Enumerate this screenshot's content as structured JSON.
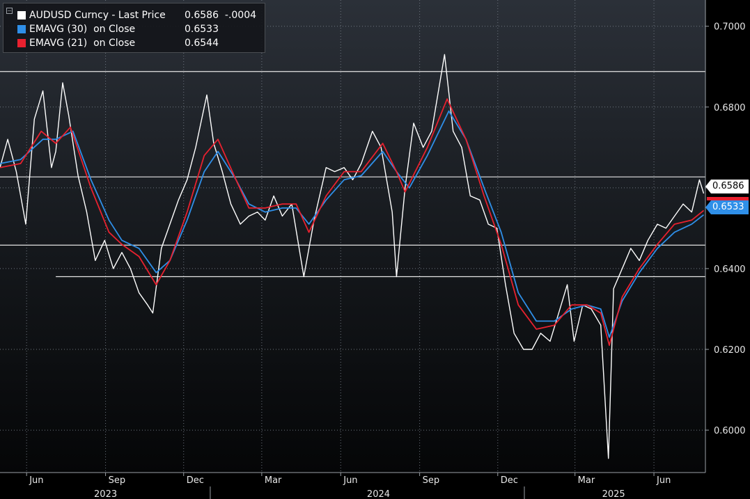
{
  "legend": {
    "rows": [
      {
        "name": "AUDUSD Curncy - Last Price",
        "value": "0.6586  -.0004",
        "color": "#ffffff"
      },
      {
        "name": "EMAVG (30)  on Close",
        "value": "0.6533",
        "color": "#2f8fe8"
      },
      {
        "name": "EMAVG (21)  on Close",
        "value": "0.6544",
        "color": "#e8212f"
      }
    ]
  },
  "price_tags": {
    "last": "0.6586",
    "ema30": "0.6533"
  },
  "chart_data": {
    "type": "line",
    "y_axis": {
      "side": "right",
      "ticks": [
        "0.6000",
        "0.6200",
        "0.6400",
        "0.6600",
        "0.6800",
        "0.7000"
      ],
      "tick_values": [
        0.6,
        0.62,
        0.64,
        0.66,
        0.68,
        0.7
      ],
      "range": [
        0.5895,
        0.7065
      ]
    },
    "x_axis": {
      "month_ticks": [
        {
          "label": "Jun",
          "date": "2023-06-01"
        },
        {
          "label": "Sep",
          "date": "2023-09-01"
        },
        {
          "label": "Dec",
          "date": "2023-12-01"
        },
        {
          "label": "Mar",
          "date": "2024-03-01"
        },
        {
          "label": "Jun",
          "date": "2024-06-01"
        },
        {
          "label": "Sep",
          "date": "2024-09-01"
        },
        {
          "label": "Dec",
          "date": "2024-12-01"
        },
        {
          "label": "Mar",
          "date": "2025-03-01"
        },
        {
          "label": "Jun",
          "date": "2025-06-01"
        }
      ],
      "year_labels": [
        {
          "label": "2023",
          "date": "2023-09-01"
        },
        {
          "label": "2024",
          "date": "2024-07-15"
        },
        {
          "label": "2025",
          "date": "2025-04-15"
        }
      ],
      "year_dividers": [
        "2024-01-01",
        "2025-01-01"
      ],
      "range": [
        "2023-05-01",
        "2025-07-31"
      ]
    },
    "grid": true,
    "legend_position": "top-left",
    "horizontal_levels": [
      {
        "value": 0.6888,
        "start": "2023-05-01"
      },
      {
        "value": 0.6627,
        "start": "2023-05-01"
      },
      {
        "value": 0.6458,
        "start": "2023-05-01"
      },
      {
        "value": 0.638,
        "start": "2023-07-05"
      }
    ],
    "series": [
      {
        "name": "AUDUSD Curncy - Last Price",
        "color": "#ffffff",
        "points": [
          [
            "2023-05-01",
            0.665
          ],
          [
            "2023-05-10",
            0.672
          ],
          [
            "2023-05-20",
            0.664
          ],
          [
            "2023-05-31",
            0.651
          ],
          [
            "2023-06-10",
            0.677
          ],
          [
            "2023-06-20",
            0.684
          ],
          [
            "2023-06-30",
            0.665
          ],
          [
            "2023-07-05",
            0.669
          ],
          [
            "2023-07-13",
            0.686
          ],
          [
            "2023-07-20",
            0.678
          ],
          [
            "2023-07-31",
            0.663
          ],
          [
            "2023-08-10",
            0.654
          ],
          [
            "2023-08-20",
            0.642
          ],
          [
            "2023-08-31",
            0.647
          ],
          [
            "2023-09-10",
            0.64
          ],
          [
            "2023-09-20",
            0.644
          ],
          [
            "2023-09-30",
            0.64
          ],
          [
            "2023-10-10",
            0.634
          ],
          [
            "2023-10-20",
            0.631
          ],
          [
            "2023-10-26",
            0.629
          ],
          [
            "2023-11-05",
            0.645
          ],
          [
            "2023-11-15",
            0.651
          ],
          [
            "2023-11-25",
            0.657
          ],
          [
            "2023-12-05",
            0.662
          ],
          [
            "2023-12-15",
            0.67
          ],
          [
            "2023-12-28",
            0.683
          ],
          [
            "2024-01-05",
            0.671
          ],
          [
            "2024-01-15",
            0.664
          ],
          [
            "2024-01-25",
            0.656
          ],
          [
            "2024-02-05",
            0.651
          ],
          [
            "2024-02-15",
            0.653
          ],
          [
            "2024-02-25",
            0.654
          ],
          [
            "2024-03-05",
            0.652
          ],
          [
            "2024-03-15",
            0.658
          ],
          [
            "2024-03-25",
            0.653
          ],
          [
            "2024-04-05",
            0.656
          ],
          [
            "2024-04-19",
            0.638
          ],
          [
            "2024-05-01",
            0.652
          ],
          [
            "2024-05-15",
            0.665
          ],
          [
            "2024-05-25",
            0.664
          ],
          [
            "2024-06-05",
            0.665
          ],
          [
            "2024-06-15",
            0.662
          ],
          [
            "2024-06-25",
            0.666
          ],
          [
            "2024-07-08",
            0.674
          ],
          [
            "2024-07-18",
            0.67
          ],
          [
            "2024-07-31",
            0.654
          ],
          [
            "2024-08-05",
            0.638
          ],
          [
            "2024-08-15",
            0.66
          ],
          [
            "2024-08-25",
            0.676
          ],
          [
            "2024-09-05",
            0.67
          ],
          [
            "2024-09-15",
            0.674
          ],
          [
            "2024-09-30",
            0.693
          ],
          [
            "2024-10-10",
            0.674
          ],
          [
            "2024-10-20",
            0.67
          ],
          [
            "2024-10-30",
            0.658
          ],
          [
            "2024-11-10",
            0.657
          ],
          [
            "2024-11-20",
            0.651
          ],
          [
            "2024-11-30",
            0.65
          ],
          [
            "2024-12-10",
            0.636
          ],
          [
            "2024-12-20",
            0.624
          ],
          [
            "2024-12-31",
            0.62
          ],
          [
            "2025-01-10",
            0.62
          ],
          [
            "2025-01-20",
            0.624
          ],
          [
            "2025-01-31",
            0.622
          ],
          [
            "2025-02-10",
            0.629
          ],
          [
            "2025-02-20",
            0.636
          ],
          [
            "2025-02-28",
            0.622
          ],
          [
            "2025-03-10",
            0.631
          ],
          [
            "2025-03-20",
            0.63
          ],
          [
            "2025-03-31",
            0.626
          ],
          [
            "2025-04-09",
            0.593
          ],
          [
            "2025-04-15",
            0.635
          ],
          [
            "2025-04-25",
            0.64
          ],
          [
            "2025-05-05",
            0.645
          ],
          [
            "2025-05-15",
            0.642
          ],
          [
            "2025-05-25",
            0.647
          ],
          [
            "2025-06-05",
            0.651
          ],
          [
            "2025-06-15",
            0.65
          ],
          [
            "2025-06-25",
            0.653
          ],
          [
            "2025-07-05",
            0.656
          ],
          [
            "2025-07-15",
            0.654
          ],
          [
            "2025-07-24",
            0.662
          ],
          [
            "2025-07-29",
            0.6586
          ]
        ]
      },
      {
        "name": "EMAVG (30)  on Close",
        "color": "#2f8fe8",
        "points": [
          [
            "2023-05-01",
            0.666
          ],
          [
            "2023-05-25",
            0.667
          ],
          [
            "2023-06-20",
            0.672
          ],
          [
            "2023-07-05",
            0.672
          ],
          [
            "2023-07-25",
            0.674
          ],
          [
            "2023-08-15",
            0.662
          ],
          [
            "2023-09-05",
            0.652
          ],
          [
            "2023-09-20",
            0.647
          ],
          [
            "2023-10-10",
            0.645
          ],
          [
            "2023-10-30",
            0.639
          ],
          [
            "2023-11-15",
            0.642
          ],
          [
            "2023-12-05",
            0.652
          ],
          [
            "2023-12-25",
            0.664
          ],
          [
            "2024-01-10",
            0.669
          ],
          [
            "2024-01-31",
            0.662
          ],
          [
            "2024-02-15",
            0.656
          ],
          [
            "2024-03-05",
            0.654
          ],
          [
            "2024-03-25",
            0.655
          ],
          [
            "2024-04-10",
            0.655
          ],
          [
            "2024-04-25",
            0.651
          ],
          [
            "2024-05-15",
            0.657
          ],
          [
            "2024-06-05",
            0.662
          ],
          [
            "2024-06-25",
            0.663
          ],
          [
            "2024-07-20",
            0.669
          ],
          [
            "2024-08-05",
            0.664
          ],
          [
            "2024-08-20",
            0.66
          ],
          [
            "2024-09-10",
            0.668
          ],
          [
            "2024-10-05",
            0.679
          ],
          [
            "2024-10-25",
            0.672
          ],
          [
            "2024-11-15",
            0.66
          ],
          [
            "2024-12-05",
            0.649
          ],
          [
            "2024-12-25",
            0.634
          ],
          [
            "2025-01-15",
            0.627
          ],
          [
            "2025-02-05",
            0.627
          ],
          [
            "2025-02-25",
            0.63
          ],
          [
            "2025-03-15",
            0.631
          ],
          [
            "2025-03-31",
            0.63
          ],
          [
            "2025-04-10",
            0.623
          ],
          [
            "2025-04-25",
            0.632
          ],
          [
            "2025-05-15",
            0.639
          ],
          [
            "2025-06-05",
            0.645
          ],
          [
            "2025-06-25",
            0.649
          ],
          [
            "2025-07-15",
            0.651
          ],
          [
            "2025-07-29",
            0.6533
          ]
        ]
      },
      {
        "name": "EMAVG (21)  on Close",
        "color": "#e8212f",
        "points": [
          [
            "2023-05-01",
            0.665
          ],
          [
            "2023-05-25",
            0.666
          ],
          [
            "2023-06-18",
            0.674
          ],
          [
            "2023-07-05",
            0.671
          ],
          [
            "2023-07-22",
            0.675
          ],
          [
            "2023-08-15",
            0.66
          ],
          [
            "2023-09-05",
            0.649
          ],
          [
            "2023-09-20",
            0.646
          ],
          [
            "2023-10-10",
            0.643
          ],
          [
            "2023-10-30",
            0.636
          ],
          [
            "2023-11-15",
            0.642
          ],
          [
            "2023-12-05",
            0.654
          ],
          [
            "2023-12-25",
            0.668
          ],
          [
            "2024-01-10",
            0.672
          ],
          [
            "2024-01-31",
            0.662
          ],
          [
            "2024-02-15",
            0.655
          ],
          [
            "2024-03-05",
            0.655
          ],
          [
            "2024-03-25",
            0.656
          ],
          [
            "2024-04-10",
            0.656
          ],
          [
            "2024-04-25",
            0.649
          ],
          [
            "2024-05-15",
            0.658
          ],
          [
            "2024-06-05",
            0.664
          ],
          [
            "2024-06-25",
            0.664
          ],
          [
            "2024-07-20",
            0.671
          ],
          [
            "2024-08-05",
            0.664
          ],
          [
            "2024-08-15",
            0.659
          ],
          [
            "2024-09-10",
            0.67
          ],
          [
            "2024-10-03",
            0.682
          ],
          [
            "2024-10-25",
            0.672
          ],
          [
            "2024-11-15",
            0.658
          ],
          [
            "2024-12-05",
            0.646
          ],
          [
            "2024-12-25",
            0.631
          ],
          [
            "2025-01-15",
            0.625
          ],
          [
            "2025-02-05",
            0.626
          ],
          [
            "2025-02-25",
            0.631
          ],
          [
            "2025-03-15",
            0.631
          ],
          [
            "2025-03-31",
            0.629
          ],
          [
            "2025-04-10",
            0.621
          ],
          [
            "2025-04-25",
            0.633
          ],
          [
            "2025-05-15",
            0.64
          ],
          [
            "2025-06-05",
            0.646
          ],
          [
            "2025-06-25",
            0.651
          ],
          [
            "2025-07-15",
            0.652
          ],
          [
            "2025-07-29",
            0.6544
          ]
        ]
      }
    ]
  }
}
